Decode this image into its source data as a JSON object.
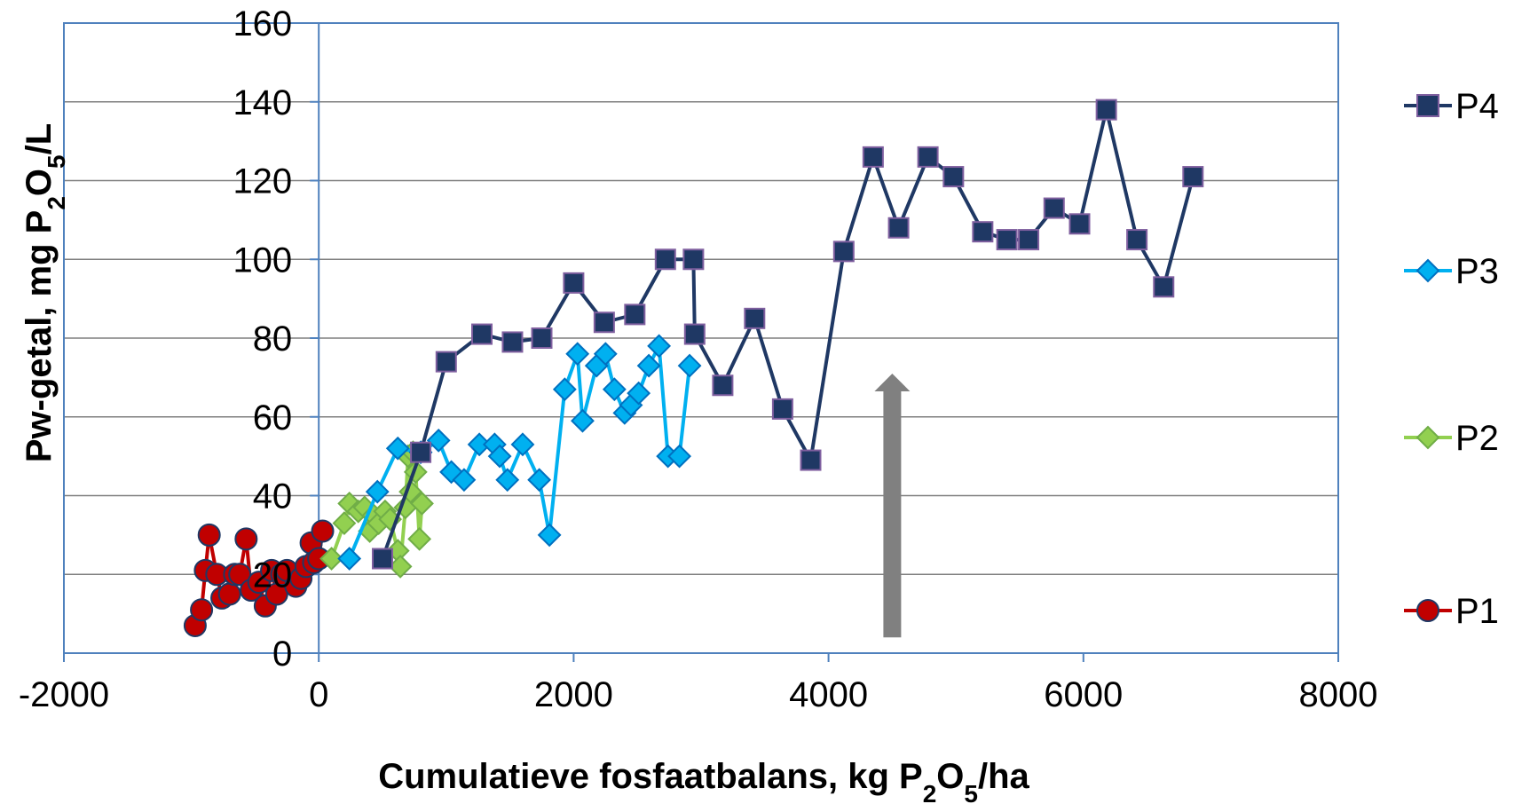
{
  "chart_data": {
    "type": "scatter",
    "xlabel": {
      "prefix": "Cumulatieve fosfaatbalans, kg P",
      "sub1": "2",
      "mid": "O",
      "sub2": "5",
      "suffix": "/ha"
    },
    "ylabel": {
      "prefix": "Pw-getal, mg P",
      "sub1": "2",
      "mid": "O",
      "sub2": "5",
      "suffix": "/L"
    },
    "xlim": [
      -2000,
      8000
    ],
    "ylim": [
      0,
      160
    ],
    "xticks": [
      -2000,
      0,
      2000,
      4000,
      6000,
      8000
    ],
    "yticks": [
      0,
      20,
      40,
      60,
      80,
      100,
      120,
      140,
      160
    ],
    "grid": "horizontal",
    "legend_position": "right",
    "arrow": {
      "x": 4500,
      "y_from": 4,
      "y_to": 71,
      "color": "#808080"
    },
    "series": [
      {
        "name": "P4",
        "color": "#1f3864",
        "marker": "square",
        "marker_fill": "#1f3864",
        "marker_stroke": "#7f5f9f",
        "x": [
          500,
          800,
          1000,
          1280,
          1520,
          1750,
          2000,
          2240,
          2480,
          2720,
          2940,
          2950,
          3170,
          3420,
          3640,
          3860,
          4120,
          4350,
          4550,
          4780,
          4980,
          5210,
          5400,
          5570,
          5770,
          5970,
          6180,
          6420,
          6630,
          6860
        ],
        "y": [
          24,
          51,
          74,
          81,
          79,
          80,
          94,
          84,
          86,
          100,
          100,
          81,
          68,
          85,
          62,
          49,
          102,
          126,
          108,
          126,
          121,
          107,
          105,
          105,
          113,
          109,
          138,
          105,
          93,
          121
        ]
      },
      {
        "name": "P3",
        "color": "#00b0f0",
        "marker": "diamond",
        "marker_fill": "#00b0f0",
        "marker_stroke": "#0070c0",
        "x": [
          240,
          460,
          620,
          800,
          940,
          1040,
          1140,
          1260,
          1380,
          1420,
          1480,
          1600,
          1730,
          1810,
          1930,
          2030,
          2070,
          2180,
          2250,
          2320,
          2400,
          2450,
          2510,
          2590,
          2670,
          2740,
          2830,
          2910
        ],
        "y": [
          24,
          41,
          52,
          51,
          54,
          46,
          44,
          53,
          53,
          50,
          44,
          53,
          44,
          30,
          67,
          76,
          59,
          73,
          76,
          67,
          61,
          63,
          66,
          73,
          78,
          50,
          50,
          73
        ]
      },
      {
        "name": "P2",
        "color": "#92d050",
        "marker": "diamond",
        "marker_fill": "#92d050",
        "marker_stroke": "#70ad47",
        "x": [
          100,
          200,
          240,
          310,
          360,
          400,
          430,
          470,
          520,
          560,
          620,
          640,
          680,
          700,
          720,
          740,
          760,
          790,
          810
        ],
        "y": [
          24,
          33,
          38,
          36,
          37,
          31,
          35,
          33,
          36,
          34,
          26,
          22,
          37,
          50,
          41,
          51,
          46,
          29,
          38
        ]
      },
      {
        "name": "P1",
        "color": "#c00000",
        "marker": "circle",
        "marker_fill": "#c00000",
        "marker_stroke": "#1f3864",
        "x": [
          -970,
          -920,
          -890,
          -860,
          -800,
          -760,
          -700,
          -660,
          -620,
          -570,
          -530,
          -470,
          -420,
          -370,
          -330,
          -290,
          -250,
          -180,
          -140,
          -100,
          -60,
          -40,
          0,
          30
        ],
        "y": [
          7,
          11,
          21,
          30,
          20,
          14,
          15,
          20,
          20,
          29,
          16,
          18,
          12,
          21,
          15,
          20,
          21,
          17,
          19,
          22,
          28,
          23,
          24,
          31
        ]
      }
    ]
  }
}
